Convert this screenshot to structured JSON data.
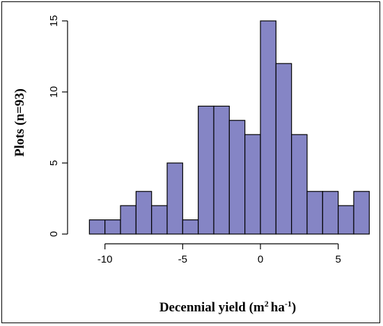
{
  "chart_data": {
    "type": "bar",
    "bin_width": 1,
    "bins": [
      {
        "x0": -11,
        "x1": -10,
        "count": 1
      },
      {
        "x0": -10,
        "x1": -9,
        "count": 1
      },
      {
        "x0": -9,
        "x1": -8,
        "count": 2
      },
      {
        "x0": -8,
        "x1": -7,
        "count": 3
      },
      {
        "x0": -7,
        "x1": -6,
        "count": 2
      },
      {
        "x0": -6,
        "x1": -5,
        "count": 5
      },
      {
        "x0": -5,
        "x1": -4,
        "count": 1
      },
      {
        "x0": -4,
        "x1": -3,
        "count": 9
      },
      {
        "x0": -3,
        "x1": -2,
        "count": 9
      },
      {
        "x0": -2,
        "x1": -1,
        "count": 8
      },
      {
        "x0": -1,
        "x1": 0,
        "count": 7
      },
      {
        "x0": 0,
        "x1": 1,
        "count": 15
      },
      {
        "x0": 1,
        "x1": 2,
        "count": 12
      },
      {
        "x0": 2,
        "x1": 3,
        "count": 7
      },
      {
        "x0": 3,
        "x1": 4,
        "count": 3
      },
      {
        "x0": 4,
        "x1": 5,
        "count": 3
      },
      {
        "x0": 5,
        "x1": 6,
        "count": 2
      },
      {
        "x0": 6,
        "x1": 7,
        "count": 3
      }
    ],
    "title": "",
    "xlabel_main": "Decennial yield (m",
    "xlabel_sup1": "2",
    "xlabel_mid": "ha",
    "xlabel_sup2": "-1",
    "xlabel_end": ")",
    "ylabel": "Plots (n=93)",
    "xticks": [
      -10,
      -5,
      0,
      5
    ],
    "yticks": [
      0,
      5,
      10,
      15
    ],
    "xlim": [
      -11,
      7
    ],
    "ylim": [
      0,
      15
    ],
    "bar_color": "#8585c5",
    "grid": false
  }
}
